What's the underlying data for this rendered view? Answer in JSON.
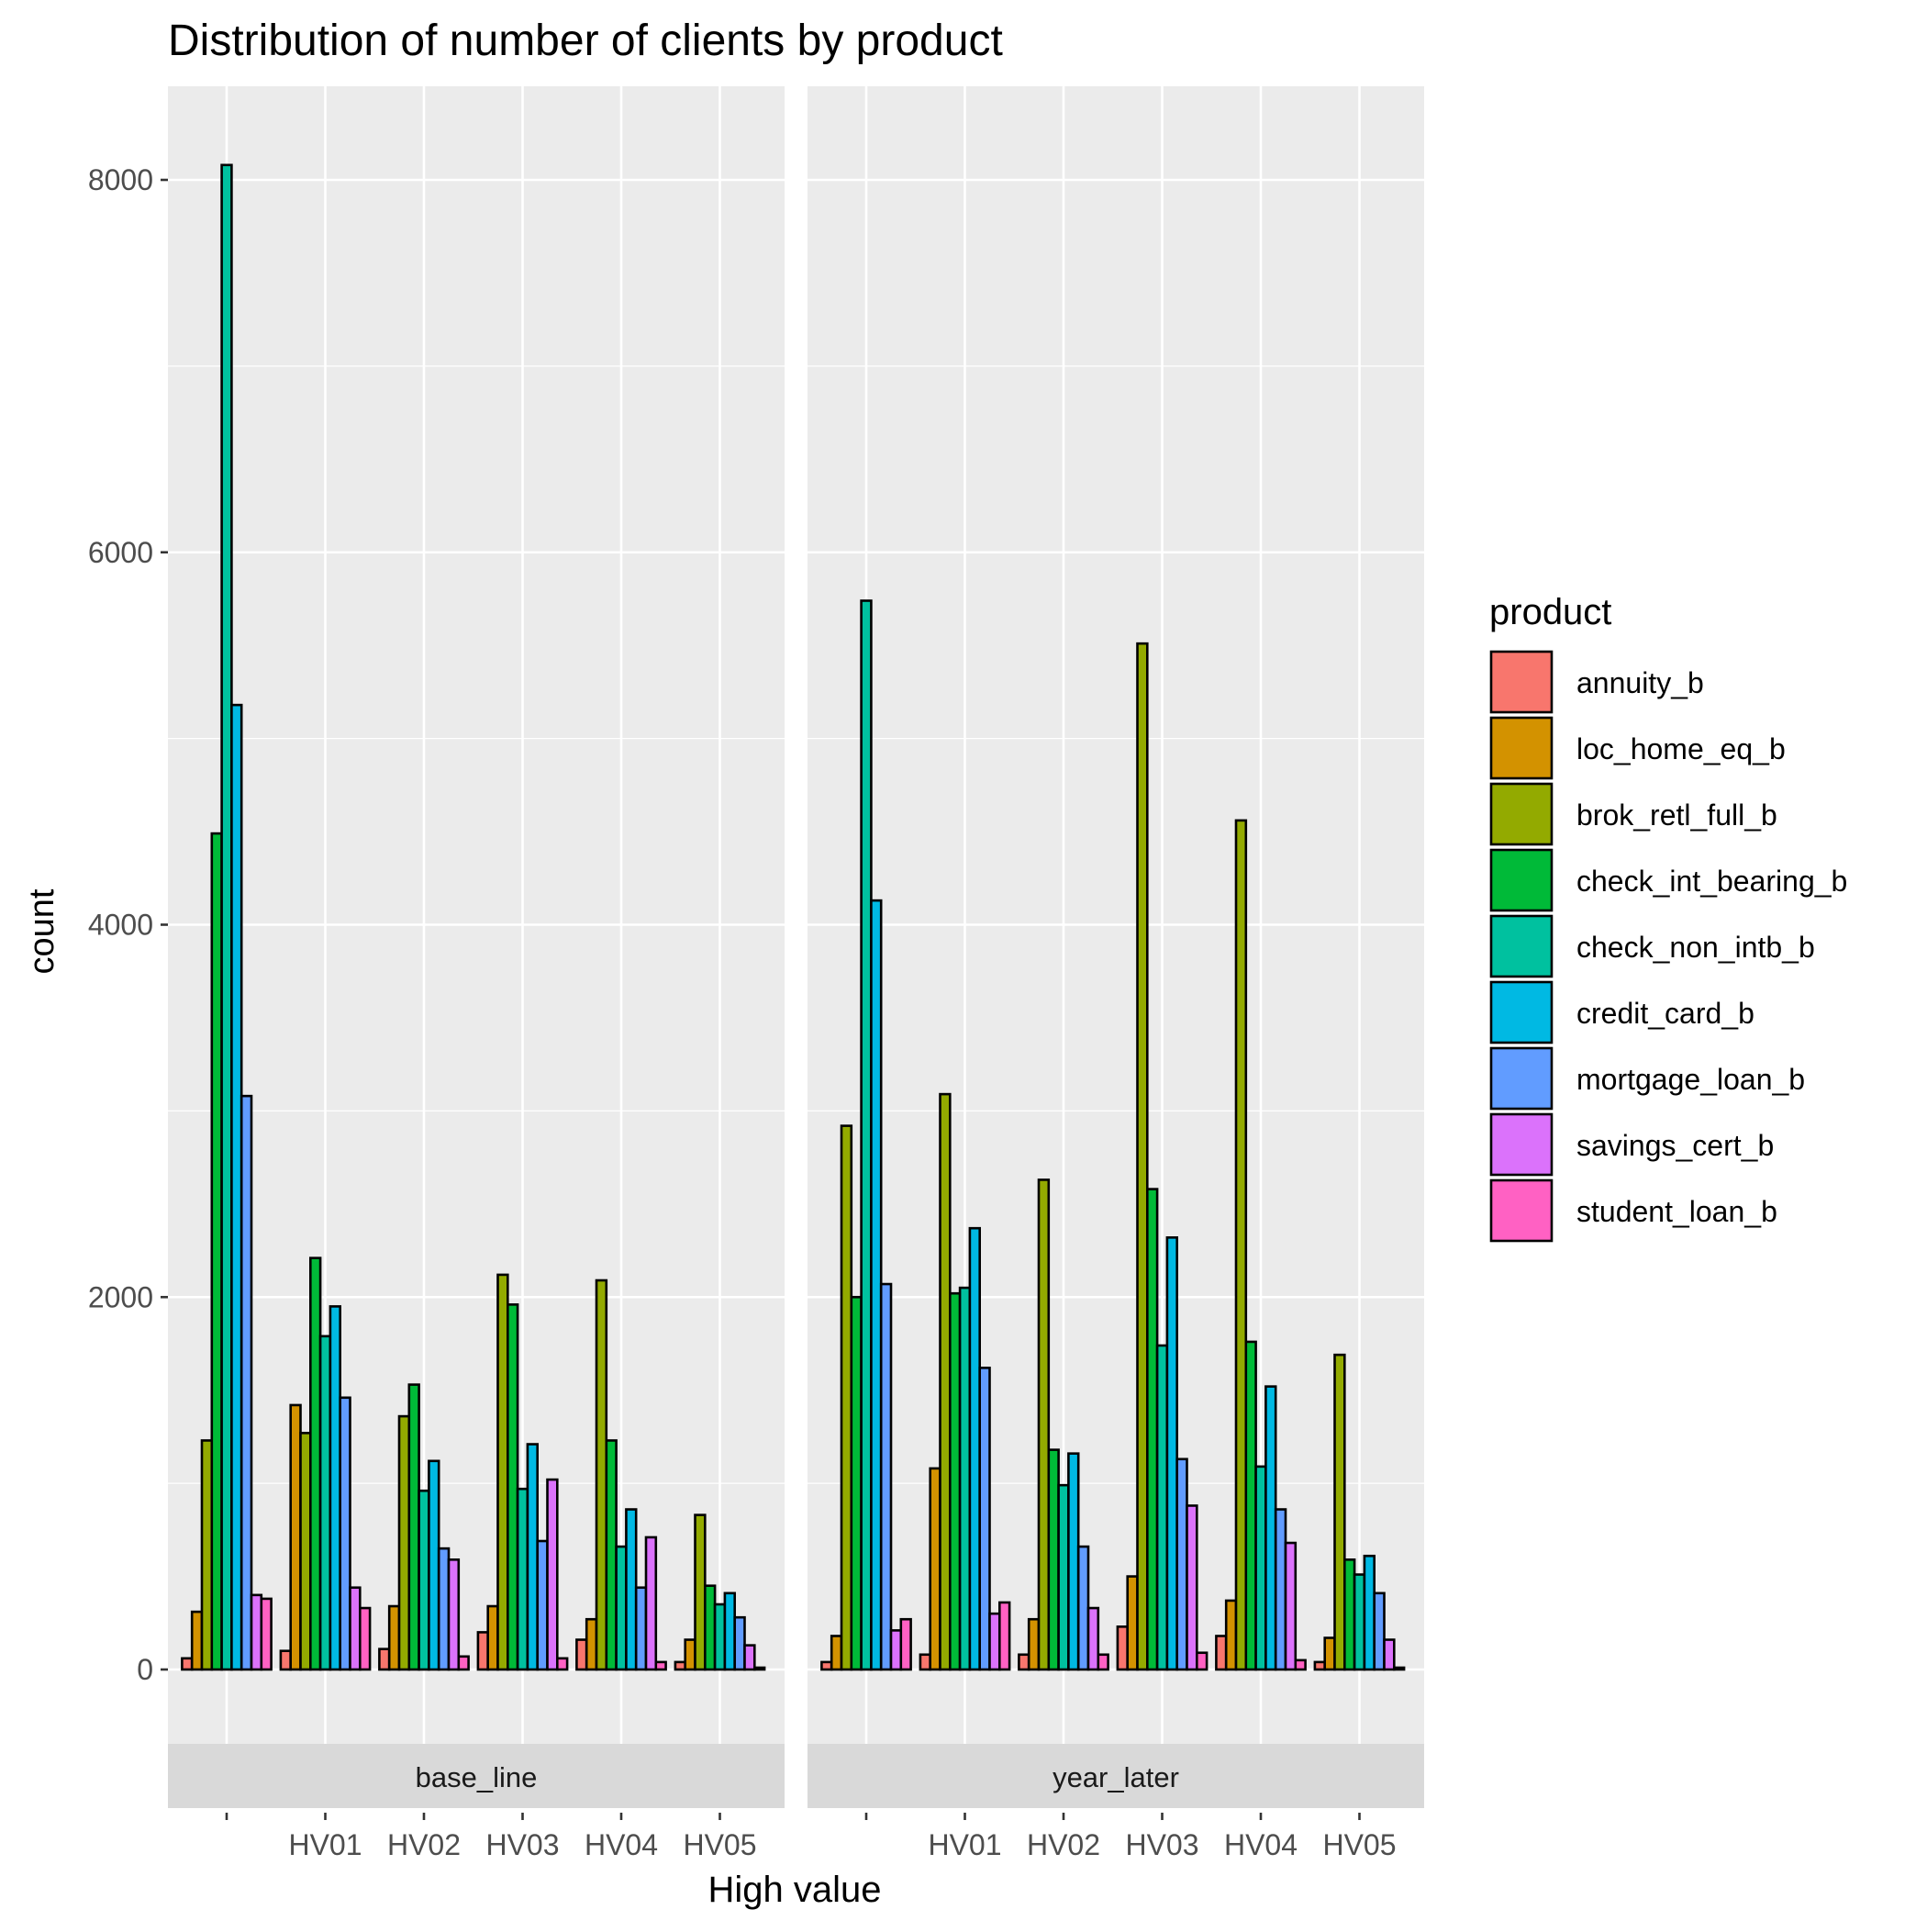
{
  "chart_data": {
    "type": "bar",
    "title": "Distribution of number of clients by product",
    "xlabel": "High value",
    "ylabel": "count",
    "ylim": [
      -400,
      8500
    ],
    "yticks": [
      0,
      2000,
      4000,
      6000,
      8000
    ],
    "grid": true,
    "legend_position": "right",
    "legend_title": "product",
    "categories": [
      "",
      "HV01",
      "HV02",
      "HV03",
      "HV04",
      "HV05"
    ],
    "colors": {
      "annuity_b": "#F8766D",
      "loc_home_eq_b": "#D39200",
      "brok_retl_full_b": "#93AA00",
      "check_int_bearing_b": "#00BA38",
      "check_non_intb_b": "#00C19F",
      "credit_card_b": "#00B9E3",
      "mortgage_loan_b": "#619CFF",
      "savings_cert_b": "#DB72FB",
      "student_loan_b": "#FF61C3"
    },
    "panels": [
      {
        "name": "base_line",
        "groups": [
          {
            "category": "",
            "bars": [
              {
                "product": "annuity_b",
                "value": 60
              },
              {
                "product": "loc_home_eq_b",
                "value": 310
              },
              {
                "product": "brok_retl_full_b",
                "value": 1230
              },
              {
                "product": "check_int_bearing_b",
                "value": 4490
              },
              {
                "product": "check_non_intb_b",
                "value": 8080
              },
              {
                "product": "credit_card_b",
                "value": 5180
              },
              {
                "product": "mortgage_loan_b",
                "value": 3080
              },
              {
                "product": "savings_cert_b",
                "value": 400
              },
              {
                "product": "student_loan_b",
                "value": 380
              }
            ]
          },
          {
            "category": "HV01",
            "bars": [
              {
                "product": "annuity_b",
                "value": 100
              },
              {
                "product": "loc_home_eq_b",
                "value": 1420
              },
              {
                "product": "brok_retl_full_b",
                "value": 1270
              },
              {
                "product": "check_int_bearing_b",
                "value": 2210
              },
              {
                "product": "check_non_intb_b",
                "value": 1790
              },
              {
                "product": "credit_card_b",
                "value": 1950
              },
              {
                "product": "mortgage_loan_b",
                "value": 1460
              },
              {
                "product": "savings_cert_b",
                "value": 440
              },
              {
                "product": "student_loan_b",
                "value": 330
              }
            ]
          },
          {
            "category": "HV02",
            "bars": [
              {
                "product": "annuity_b",
                "value": 110
              },
              {
                "product": "loc_home_eq_b",
                "value": 340
              },
              {
                "product": "brok_retl_full_b",
                "value": 1360
              },
              {
                "product": "check_int_bearing_b",
                "value": 1530
              },
              {
                "product": "check_non_intb_b",
                "value": 960
              },
              {
                "product": "credit_card_b",
                "value": 1120
              },
              {
                "product": "mortgage_loan_b",
                "value": 650
              },
              {
                "product": "savings_cert_b",
                "value": 590
              },
              {
                "product": "student_loan_b",
                "value": 70
              }
            ]
          },
          {
            "category": "HV03",
            "bars": [
              {
                "product": "annuity_b",
                "value": 200
              },
              {
                "product": "loc_home_eq_b",
                "value": 340
              },
              {
                "product": "brok_retl_full_b",
                "value": 2120
              },
              {
                "product": "check_int_bearing_b",
                "value": 1960
              },
              {
                "product": "check_non_intb_b",
                "value": 970
              },
              {
                "product": "credit_card_b",
                "value": 1210
              },
              {
                "product": "mortgage_loan_b",
                "value": 690
              },
              {
                "product": "savings_cert_b",
                "value": 1020
              },
              {
                "product": "student_loan_b",
                "value": 60
              }
            ]
          },
          {
            "category": "HV04",
            "bars": [
              {
                "product": "annuity_b",
                "value": 160
              },
              {
                "product": "loc_home_eq_b",
                "value": 270
              },
              {
                "product": "brok_retl_full_b",
                "value": 2090
              },
              {
                "product": "check_int_bearing_b",
                "value": 1230
              },
              {
                "product": "check_non_intb_b",
                "value": 660
              },
              {
                "product": "credit_card_b",
                "value": 860
              },
              {
                "product": "mortgage_loan_b",
                "value": 440
              },
              {
                "product": "savings_cert_b",
                "value": 710
              },
              {
                "product": "student_loan_b",
                "value": 40
              }
            ]
          },
          {
            "category": "HV05",
            "bars": [
              {
                "product": "annuity_b",
                "value": 40
              },
              {
                "product": "loc_home_eq_b",
                "value": 160
              },
              {
                "product": "brok_retl_full_b",
                "value": 830
              },
              {
                "product": "check_int_bearing_b",
                "value": 450
              },
              {
                "product": "check_non_intb_b",
                "value": 350
              },
              {
                "product": "credit_card_b",
                "value": 410
              },
              {
                "product": "mortgage_loan_b",
                "value": 280
              },
              {
                "product": "savings_cert_b",
                "value": 130
              },
              {
                "product": "student_loan_b",
                "value": 10
              }
            ]
          }
        ]
      },
      {
        "name": "year_later",
        "groups": [
          {
            "category": "",
            "bars": [
              {
                "product": "annuity_b",
                "value": 40
              },
              {
                "product": "loc_home_eq_b",
                "value": 180
              },
              {
                "product": "brok_retl_full_b",
                "value": 2920
              },
              {
                "product": "check_int_bearing_b",
                "value": 2000
              },
              {
                "product": "check_non_intb_b",
                "value": 5740
              },
              {
                "product": "credit_card_b",
                "value": 4130
              },
              {
                "product": "mortgage_loan_b",
                "value": 2070
              },
              {
                "product": "savings_cert_b",
                "value": 210
              },
              {
                "product": "student_loan_b",
                "value": 270
              }
            ]
          },
          {
            "category": "HV01",
            "bars": [
              {
                "product": "annuity_b",
                "value": 80
              },
              {
                "product": "loc_home_eq_b",
                "value": 1080
              },
              {
                "product": "brok_retl_full_b",
                "value": 3090
              },
              {
                "product": "check_int_bearing_b",
                "value": 2020
              },
              {
                "product": "check_non_intb_b",
                "value": 2050
              },
              {
                "product": "credit_card_b",
                "value": 2370
              },
              {
                "product": "mortgage_loan_b",
                "value": 1620
              },
              {
                "product": "savings_cert_b",
                "value": 300
              },
              {
                "product": "student_loan_b",
                "value": 360
              }
            ]
          },
          {
            "category": "HV02",
            "bars": [
              {
                "product": "annuity_b",
                "value": 80
              },
              {
                "product": "loc_home_eq_b",
                "value": 270
              },
              {
                "product": "brok_retl_full_b",
                "value": 2630
              },
              {
                "product": "check_int_bearing_b",
                "value": 1180
              },
              {
                "product": "check_non_intb_b",
                "value": 990
              },
              {
                "product": "credit_card_b",
                "value": 1160
              },
              {
                "product": "mortgage_loan_b",
                "value": 660
              },
              {
                "product": "savings_cert_b",
                "value": 330
              },
              {
                "product": "student_loan_b",
                "value": 80
              }
            ]
          },
          {
            "category": "HV03",
            "bars": [
              {
                "product": "annuity_b",
                "value": 230
              },
              {
                "product": "loc_home_eq_b",
                "value": 500
              },
              {
                "product": "brok_retl_full_b",
                "value": 5510
              },
              {
                "product": "check_int_bearing_b",
                "value": 2580
              },
              {
                "product": "check_non_intb_b",
                "value": 1740
              },
              {
                "product": "credit_card_b",
                "value": 2320
              },
              {
                "product": "mortgage_loan_b",
                "value": 1130
              },
              {
                "product": "savings_cert_b",
                "value": 880
              },
              {
                "product": "student_loan_b",
                "value": 90
              }
            ]
          },
          {
            "category": "HV04",
            "bars": [
              {
                "product": "annuity_b",
                "value": 180
              },
              {
                "product": "loc_home_eq_b",
                "value": 370
              },
              {
                "product": "brok_retl_full_b",
                "value": 4560
              },
              {
                "product": "check_int_bearing_b",
                "value": 1760
              },
              {
                "product": "check_non_intb_b",
                "value": 1090
              },
              {
                "product": "credit_card_b",
                "value": 1520
              },
              {
                "product": "mortgage_loan_b",
                "value": 860
              },
              {
                "product": "savings_cert_b",
                "value": 680
              },
              {
                "product": "student_loan_b",
                "value": 50
              }
            ]
          },
          {
            "category": "HV05",
            "bars": [
              {
                "product": "annuity_b",
                "value": 40
              },
              {
                "product": "loc_home_eq_b",
                "value": 170
              },
              {
                "product": "brok_retl_full_b",
                "value": 1690
              },
              {
                "product": "check_int_bearing_b",
                "value": 590
              },
              {
                "product": "check_non_intb_b",
                "value": 510
              },
              {
                "product": "credit_card_b",
                "value": 610
              },
              {
                "product": "mortgage_loan_b",
                "value": 410
              },
              {
                "product": "savings_cert_b",
                "value": 160
              },
              {
                "product": "student_loan_b",
                "value": 10
              }
            ]
          }
        ]
      }
    ]
  }
}
